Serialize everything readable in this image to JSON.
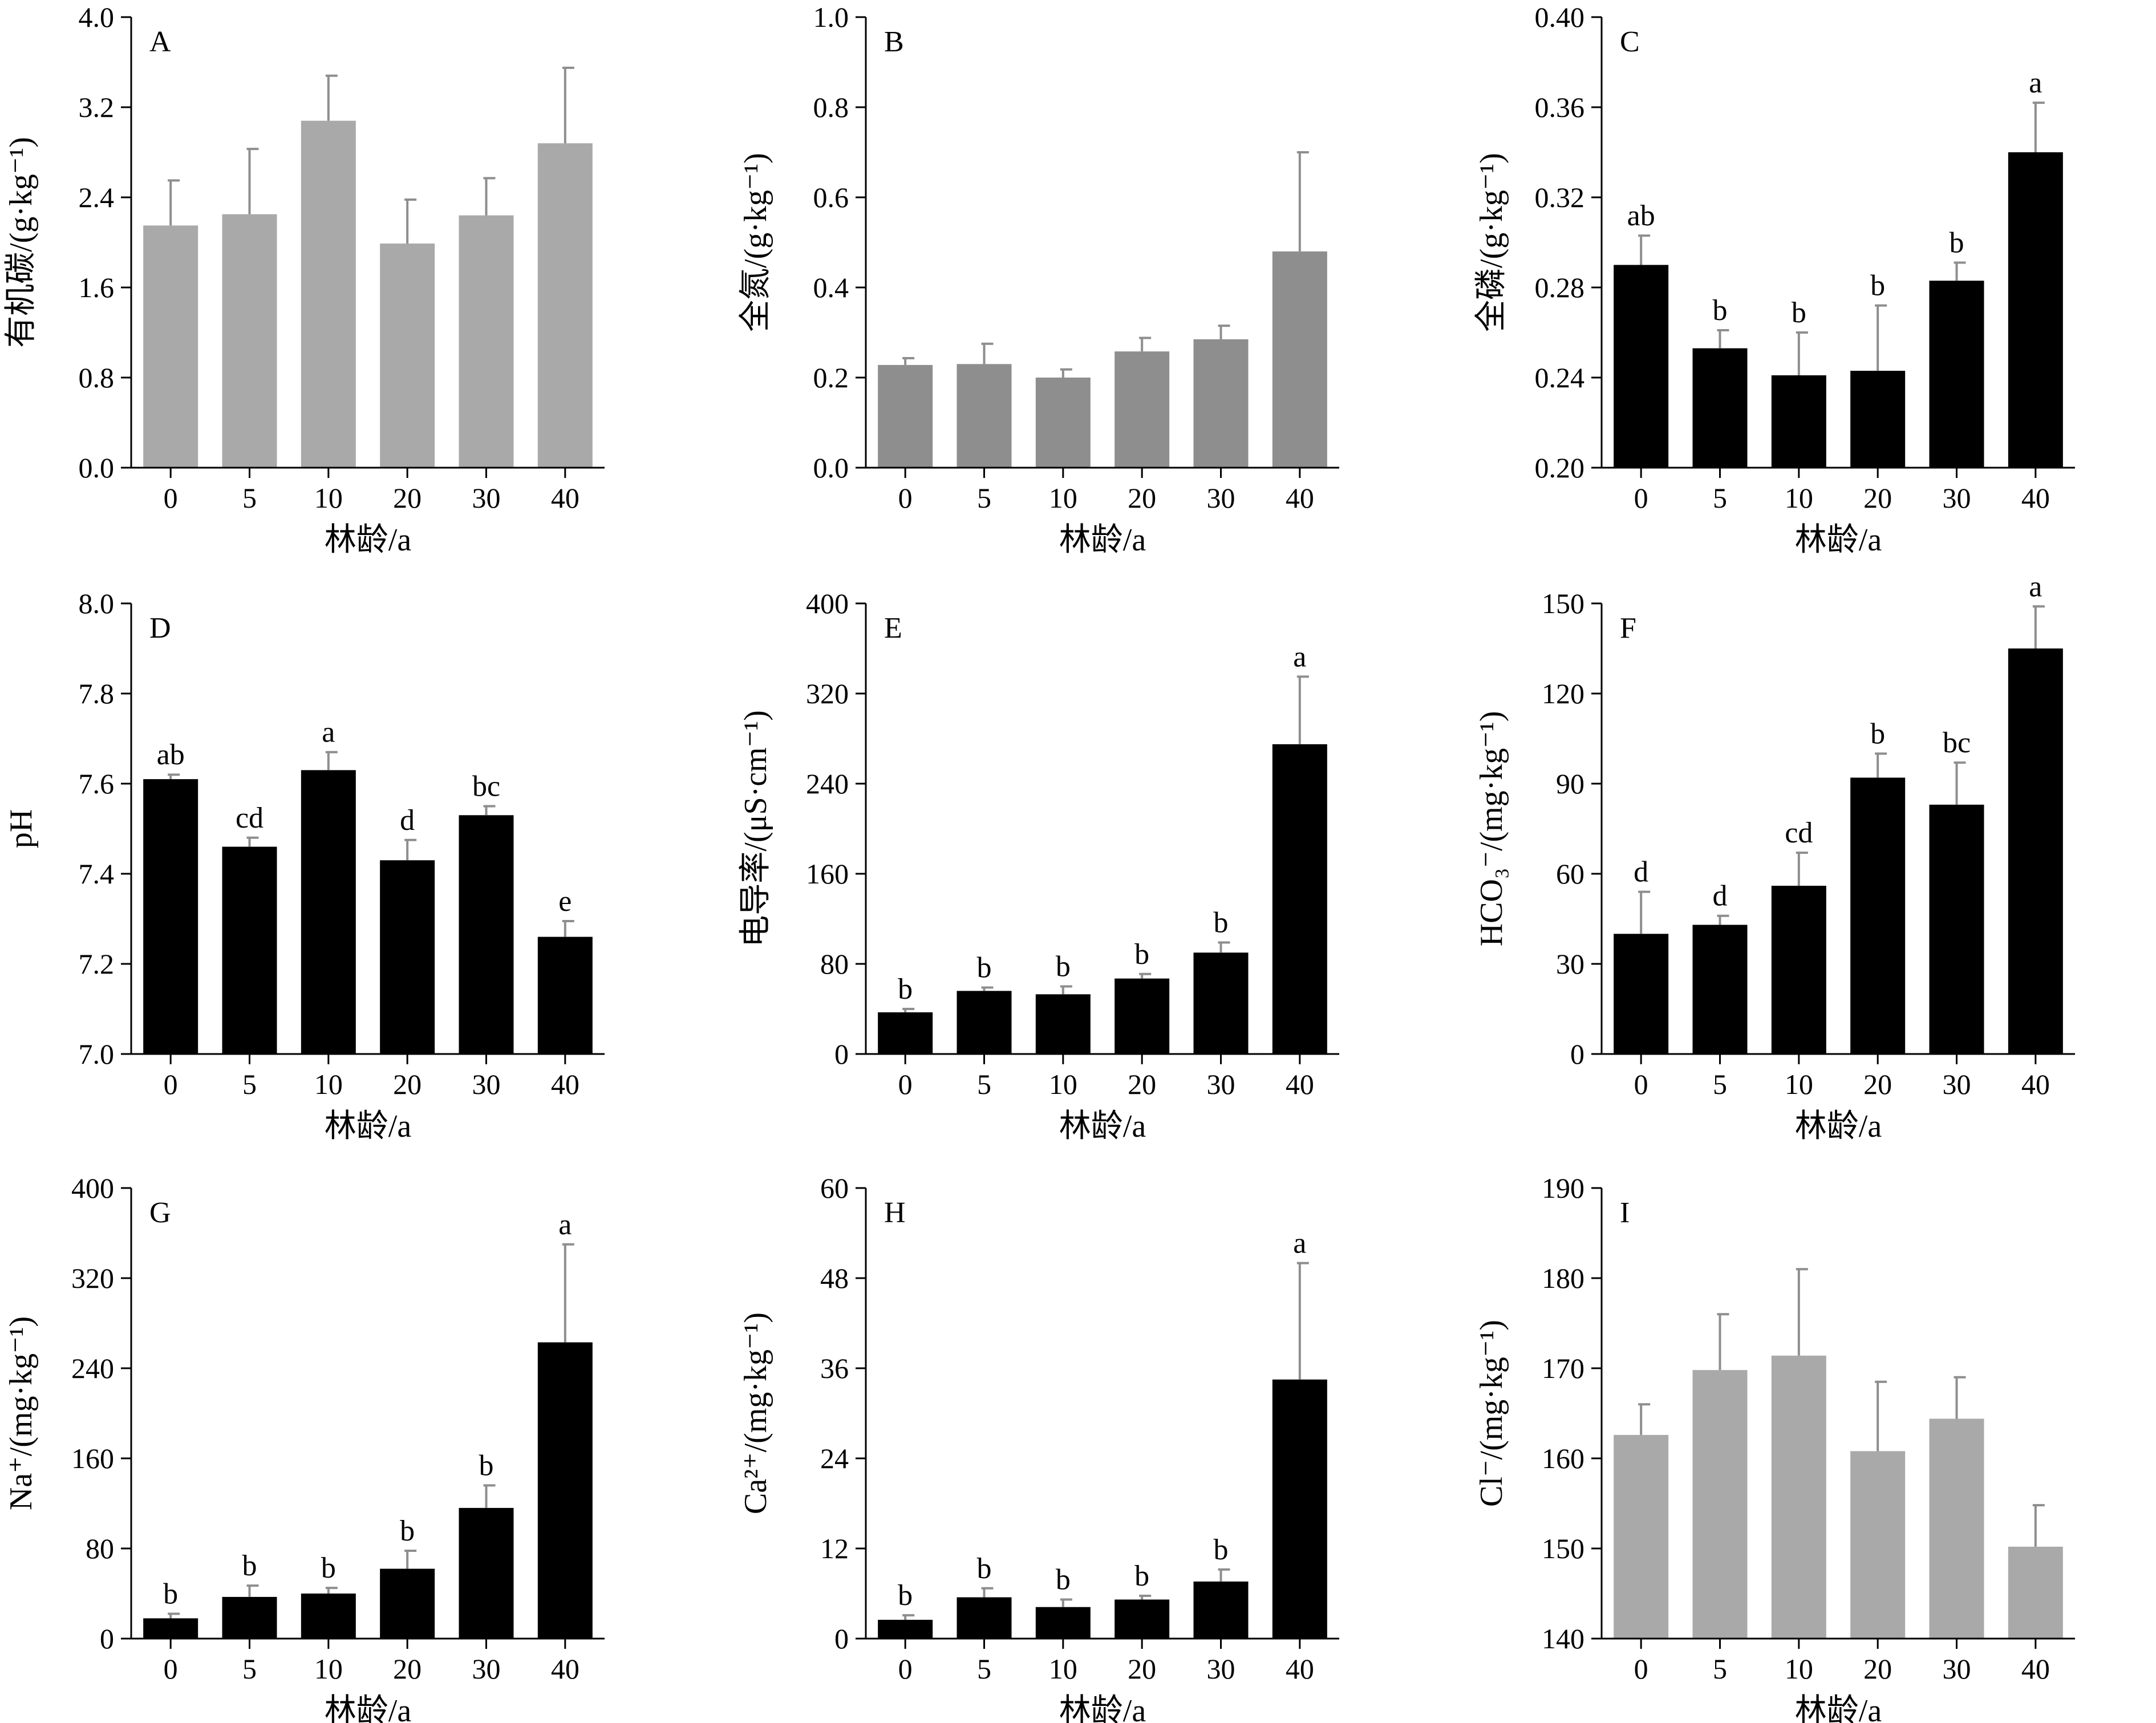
{
  "figure": {
    "colors": {
      "black": "#000000",
      "light_gray": "#a9a9a9",
      "mid_gray": "#8e8e8e"
    }
  },
  "chart_data": [
    {
      "panel": "A",
      "type": "bar",
      "categories": [
        "0",
        "5",
        "10",
        "20",
        "30",
        "40"
      ],
      "values": [
        2.15,
        2.25,
        3.08,
        1.99,
        2.24,
        2.88
      ],
      "errors": [
        0.4,
        0.58,
        0.4,
        0.39,
        0.33,
        0.67
      ],
      "labels": [],
      "ylabel": "有机碳/(g·kg⁻¹)",
      "xlabel": "林龄/a",
      "ylim": [
        0,
        4.0
      ],
      "yticks": [
        "0.0",
        "0.8",
        "1.6",
        "2.4",
        "3.2",
        "4.0"
      ],
      "bar_color": "#a9a9a9",
      "error_color": "#8e8e8e"
    },
    {
      "panel": "B",
      "type": "bar",
      "categories": [
        "0",
        "5",
        "10",
        "20",
        "30",
        "40"
      ],
      "values": [
        0.228,
        0.23,
        0.2,
        0.258,
        0.285,
        0.48
      ],
      "errors": [
        0.015,
        0.045,
        0.018,
        0.03,
        0.03,
        0.22
      ],
      "labels": [],
      "ylabel": "全氮/(g·kg⁻¹)",
      "xlabel": "林龄/a",
      "ylim": [
        0,
        1.0
      ],
      "yticks": [
        "0.0",
        "0.2",
        "0.4",
        "0.6",
        "0.8",
        "1.0"
      ],
      "bar_color": "#8e8e8e",
      "error_color": "#8e8e8e"
    },
    {
      "panel": "C",
      "type": "bar",
      "categories": [
        "0",
        "5",
        "10",
        "20",
        "30",
        "40"
      ],
      "values": [
        0.29,
        0.253,
        0.241,
        0.243,
        0.283,
        0.34
      ],
      "errors": [
        0.013,
        0.008,
        0.019,
        0.029,
        0.008,
        0.022
      ],
      "labels": [
        "ab",
        "b",
        "b",
        "b",
        "b",
        "a"
      ],
      "ylabel": "全磷/(g·kg⁻¹)",
      "xlabel": "林龄/a",
      "ylim": [
        0.2,
        0.4
      ],
      "yticks": [
        "0.20",
        "0.24",
        "0.28",
        "0.32",
        "0.36",
        "0.40"
      ],
      "bar_color": "#000000",
      "error_color": "#8e8e8e"
    },
    {
      "panel": "D",
      "type": "bar",
      "categories": [
        "0",
        "5",
        "10",
        "20",
        "30",
        "40"
      ],
      "values": [
        7.61,
        7.46,
        7.63,
        7.43,
        7.53,
        7.26
      ],
      "errors": [
        0.01,
        0.02,
        0.04,
        0.045,
        0.02,
        0.035
      ],
      "labels": [
        "ab",
        "cd",
        "a",
        "d",
        "bc",
        "e"
      ],
      "ylabel": "pH",
      "xlabel": "林龄/a",
      "ylim": [
        7.0,
        8.0
      ],
      "yticks": [
        "7.0",
        "7.2",
        "7.4",
        "7.6",
        "7.8",
        "8.0"
      ],
      "bar_color": "#000000",
      "error_color": "#8e8e8e"
    },
    {
      "panel": "E",
      "type": "bar",
      "categories": [
        "0",
        "5",
        "10",
        "20",
        "30",
        "40"
      ],
      "values": [
        37,
        56,
        53,
        67,
        90,
        275
      ],
      "errors": [
        3,
        3,
        7,
        4,
        9,
        60
      ],
      "labels": [
        "b",
        "b",
        "b",
        "b",
        "b",
        "a"
      ],
      "ylabel": "电导率/(μS·cm⁻¹)",
      "xlabel": "林龄/a",
      "ylim": [
        0,
        400
      ],
      "yticks": [
        "0",
        "80",
        "160",
        "240",
        "320",
        "400"
      ],
      "bar_color": "#000000",
      "error_color": "#8e8e8e"
    },
    {
      "panel": "F",
      "type": "bar",
      "categories": [
        "0",
        "5",
        "10",
        "20",
        "30",
        "40"
      ],
      "values": [
        40,
        43,
        56,
        92,
        83,
        135
      ],
      "errors": [
        14,
        3,
        11,
        8,
        14,
        14
      ],
      "labels": [
        "d",
        "d",
        "cd",
        "b",
        "bc",
        "a"
      ],
      "ylabel": "HCO₃⁻/(mg·kg⁻¹)",
      "xlabel": "林龄/a",
      "ylim": [
        0,
        150
      ],
      "yticks": [
        "0",
        "30",
        "60",
        "90",
        "120",
        "150"
      ],
      "bar_color": "#000000",
      "error_color": "#8e8e8e"
    },
    {
      "panel": "G",
      "type": "bar",
      "categories": [
        "0",
        "5",
        "10",
        "20",
        "30",
        "40"
      ],
      "values": [
        18,
        37,
        40,
        62,
        116,
        263
      ],
      "errors": [
        4,
        10,
        5,
        16,
        20,
        87
      ],
      "labels": [
        "b",
        "b",
        "b",
        "b",
        "b",
        "a"
      ],
      "ylabel": "Na⁺/(mg·kg⁻¹)",
      "xlabel": "林龄/a",
      "ylim": [
        0,
        400
      ],
      "yticks": [
        "0",
        "80",
        "160",
        "240",
        "320",
        "400"
      ],
      "bar_color": "#000000",
      "error_color": "#8e8e8e"
    },
    {
      "panel": "H",
      "type": "bar",
      "categories": [
        "0",
        "5",
        "10",
        "20",
        "30",
        "40"
      ],
      "values": [
        2.5,
        5.5,
        4.2,
        5.2,
        7.6,
        34.5
      ],
      "errors": [
        0.6,
        1.2,
        1.0,
        0.5,
        1.6,
        15.5
      ],
      "labels": [
        "b",
        "b",
        "b",
        "b",
        "b",
        "a"
      ],
      "ylabel": "Ca²⁺/(mg·kg⁻¹)",
      "xlabel": "林龄/a",
      "ylim": [
        0,
        60
      ],
      "yticks": [
        "0",
        "12",
        "24",
        "36",
        "48",
        "60"
      ],
      "bar_color": "#000000",
      "error_color": "#8e8e8e"
    },
    {
      "panel": "I",
      "type": "bar",
      "categories": [
        "0",
        "5",
        "10",
        "20",
        "30",
        "40"
      ],
      "values": [
        162.6,
        169.8,
        171.4,
        160.8,
        164.4,
        150.2
      ],
      "errors": [
        3.4,
        6.2,
        9.6,
        7.7,
        4.6,
        4.6
      ],
      "labels": [],
      "ylabel": "Cl⁻/(mg·kg⁻¹)",
      "xlabel": "林龄/a",
      "ylim": [
        140,
        190
      ],
      "yticks": [
        "140",
        "150",
        "160",
        "170",
        "180",
        "190"
      ],
      "bar_color": "#a9a9a9",
      "error_color": "#8e8e8e"
    }
  ]
}
